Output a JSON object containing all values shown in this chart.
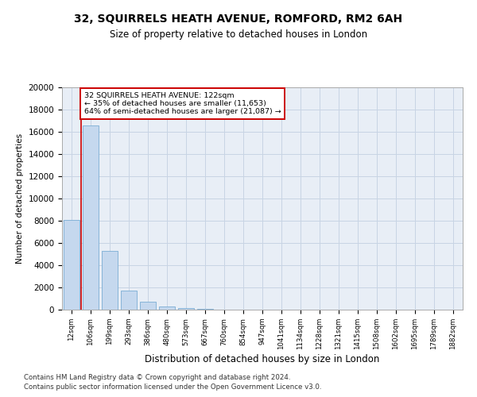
{
  "title_line1": "32, SQUIRRELS HEATH AVENUE, ROMFORD, RM2 6AH",
  "title_line2": "Size of property relative to detached houses in London",
  "xlabel": "Distribution of detached houses by size in London",
  "ylabel": "Number of detached properties",
  "bar_color": "#c5d8ee",
  "bar_edge_color": "#7aadd4",
  "grid_color": "#c8d4e4",
  "background_color": "#e8eef6",
  "property_line_color": "#cc0000",
  "annotation_box_color": "#cc0000",
  "categories": [
    "12sqm",
    "106sqm",
    "199sqm",
    "293sqm",
    "386sqm",
    "480sqm",
    "573sqm",
    "667sqm",
    "760sqm",
    "854sqm",
    "947sqm",
    "1041sqm",
    "1134sqm",
    "1228sqm",
    "1321sqm",
    "1415sqm",
    "1508sqm",
    "1602sqm",
    "1695sqm",
    "1789sqm",
    "1882sqm"
  ],
  "values": [
    8100,
    16600,
    5300,
    1750,
    680,
    280,
    175,
    100,
    0,
    0,
    0,
    0,
    0,
    0,
    0,
    0,
    0,
    0,
    0,
    0,
    0
  ],
  "ylim": [
    0,
    20000
  ],
  "yticks": [
    0,
    2000,
    4000,
    6000,
    8000,
    10000,
    12000,
    14000,
    16000,
    18000,
    20000
  ],
  "property_bin_index": 1,
  "annotation_text_line1": "32 SQUIRRELS HEATH AVENUE: 122sqm",
  "annotation_text_line2": "← 35% of detached houses are smaller (11,653)",
  "annotation_text_line3": "64% of semi-detached houses are larger (21,087) →",
  "footnote1": "Contains HM Land Registry data © Crown copyright and database right 2024.",
  "footnote2": "Contains public sector information licensed under the Open Government Licence v3.0."
}
